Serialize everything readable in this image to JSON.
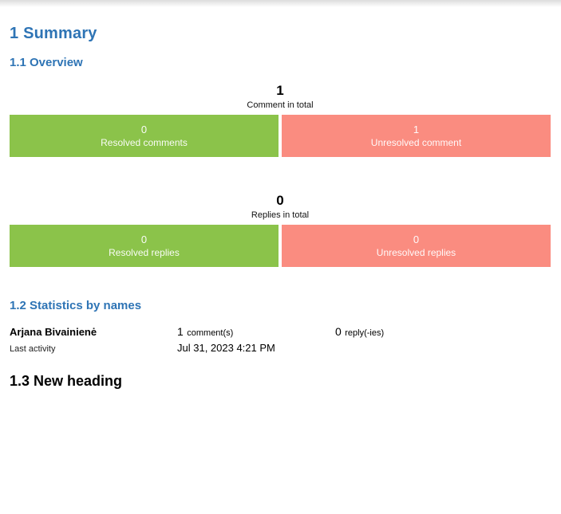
{
  "document": {
    "heading_summary": "1 Summary",
    "heading_overview": "1.1 Overview",
    "heading_statistics": "1.2 Statistics by names",
    "heading_new": "1.3 New heading"
  },
  "charts": [
    {
      "total": "1",
      "total_label": "Comment in total",
      "resolved_value": "0",
      "resolved_label": "Resolved comments",
      "unresolved_value": "1",
      "unresolved_label": "Unresolved comment"
    },
    {
      "total": "0",
      "total_label": "Replies in total",
      "resolved_value": "0",
      "resolved_label": "Resolved replies",
      "unresolved_value": "0",
      "unresolved_label": "Unresolved replies"
    }
  ],
  "statistics": {
    "author_name": "Arjana Bivainienė",
    "comments_value": "1",
    "comments_label": "comment(s)",
    "replies_value": "0",
    "replies_label": "reply(-ies)",
    "last_activity_label": "Last activity",
    "last_activity_value": "Jul 31, 2023 4:21 PM"
  },
  "colors": {
    "heading_blue": "#2e74b5",
    "resolved_green": "#8bc34a",
    "unresolved_red": "#fa8c80"
  }
}
